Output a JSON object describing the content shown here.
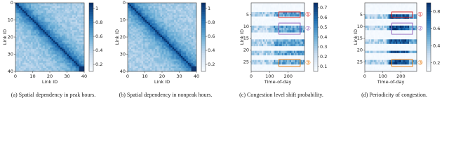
{
  "panels": [
    {
      "caption": "(a) Spatial dependency in peak hours.",
      "xlabel": "Link ID",
      "ylabel": "Link ID",
      "xticks": [
        0,
        10,
        20,
        30,
        40
      ],
      "yticks": [
        0,
        10,
        20,
        30,
        40
      ],
      "cbticks": [
        0.2,
        0.4,
        0.6,
        0.8,
        1.0
      ]
    },
    {
      "caption": "(b) Spatial dependency in nonpeak hours.",
      "xlabel": "Link ID",
      "ylabel": "Link ID",
      "xticks": [
        0,
        10,
        20,
        30,
        40
      ],
      "yticks": [
        0,
        10,
        20,
        30,
        40
      ],
      "cbticks": [
        0.2,
        0.4,
        0.6,
        0.8,
        1.0
      ]
    },
    {
      "caption": "(c) Congestion level shift probability.",
      "xlabel": "Time-of-day",
      "ylabel": "Link ID",
      "xticks": [
        0,
        100,
        200
      ],
      "yticks": [
        5,
        10,
        15,
        20,
        25
      ],
      "cbticks": [
        0.1,
        0.2,
        0.3,
        0.4,
        0.5,
        0.6,
        0.7
      ],
      "annotations": [
        "①",
        "②",
        "③"
      ]
    },
    {
      "caption": "(d) Periodicity of congestion.",
      "xlabel": "Time-of-day",
      "ylabel": "Link ID",
      "xticks": [
        0,
        100,
        200
      ],
      "yticks": [
        5,
        10,
        15,
        20,
        25
      ],
      "cbticks": [
        0.2,
        0.4,
        0.6,
        0.8
      ],
      "annotations": [
        "①",
        "②",
        "③"
      ]
    }
  ]
}
